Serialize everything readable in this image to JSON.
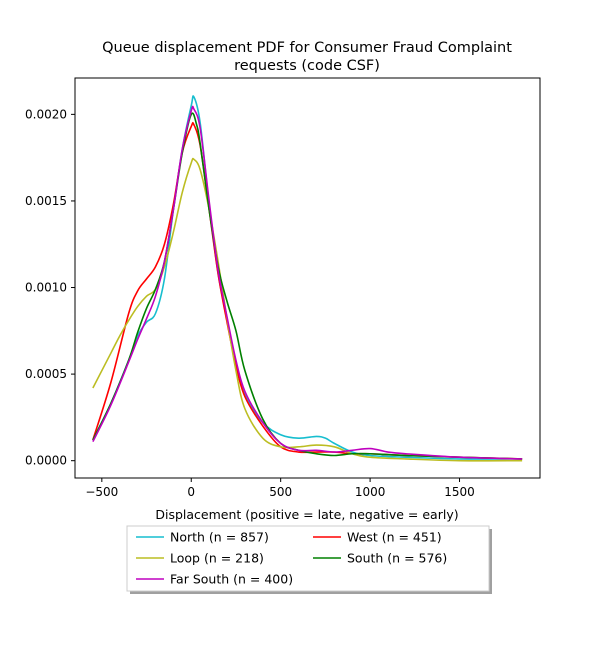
{
  "chart_data": {
    "type": "line",
    "title": "Queue displacement PDF for Consumer Fraud Complaint requests (code CSF)",
    "title_lines": [
      "Queue displacement PDF for Consumer Fraud Complaint",
      "requests (code CSF)"
    ],
    "xlabel": "Displacement (positive = late, negative = early)",
    "ylabel": "",
    "xlim": [
      -650,
      1950
    ],
    "ylim": [
      -0.0001,
      0.00221
    ],
    "xticks": [
      -500,
      0,
      500,
      1000,
      1500
    ],
    "yticks": [
      0.0,
      0.0005,
      0.001,
      0.0015,
      0.002
    ],
    "xtick_labels": [
      "−500",
      "0",
      "500",
      "1000",
      "1500"
    ],
    "ytick_labels": [
      "0.0000",
      "0.0005",
      "0.0010",
      "0.0015",
      "0.0020"
    ],
    "grid": false,
    "legend_position": "below",
    "series": [
      {
        "name": "North (n = 857)",
        "color": "#17becf",
        "points": [
          [
            -550,
            0.00012
          ],
          [
            -450,
            0.00033
          ],
          [
            -350,
            0.00058
          ],
          [
            -300,
            0.00072
          ],
          [
            -250,
            0.0008
          ],
          [
            -200,
            0.00085
          ],
          [
            -150,
            0.00105
          ],
          [
            -100,
            0.00145
          ],
          [
            -50,
            0.0018
          ],
          [
            0,
            0.00205
          ],
          [
            15,
            0.0021
          ],
          [
            50,
            0.00195
          ],
          [
            100,
            0.00148
          ],
          [
            150,
            0.00108
          ],
          [
            200,
            0.00082
          ],
          [
            250,
            0.00055
          ],
          [
            300,
            0.00038
          ],
          [
            400,
            0.00022
          ],
          [
            500,
            0.00015
          ],
          [
            600,
            0.00013
          ],
          [
            700,
            0.00014
          ],
          [
            750,
            0.00013
          ],
          [
            800,
            0.0001
          ],
          [
            900,
            5e-05
          ],
          [
            1000,
            3e-05
          ],
          [
            1200,
            2e-05
          ],
          [
            1500,
            1e-05
          ],
          [
            1850,
            1e-05
          ]
        ]
      },
      {
        "name": "West (n = 451)",
        "color": "#ff0000",
        "points": [
          [
            -550,
            0.00012
          ],
          [
            -450,
            0.00045
          ],
          [
            -350,
            0.00085
          ],
          [
            -300,
            0.00098
          ],
          [
            -250,
            0.00105
          ],
          [
            -200,
            0.00112
          ],
          [
            -150,
            0.00125
          ],
          [
            -100,
            0.00148
          ],
          [
            -50,
            0.00178
          ],
          [
            0,
            0.00193
          ],
          [
            15,
            0.00194
          ],
          [
            50,
            0.00182
          ],
          [
            100,
            0.00145
          ],
          [
            150,
            0.00108
          ],
          [
            200,
            0.0008
          ],
          [
            250,
            0.00055
          ],
          [
            300,
            0.00037
          ],
          [
            400,
            0.0002
          ],
          [
            500,
            8e-05
          ],
          [
            600,
            5e-05
          ],
          [
            700,
            5e-05
          ],
          [
            800,
            5e-05
          ],
          [
            900,
            4e-05
          ],
          [
            1000,
            4e-05
          ],
          [
            1200,
            3e-05
          ],
          [
            1500,
            2e-05
          ],
          [
            1850,
            1e-05
          ]
        ]
      },
      {
        "name": "Loop (n = 218)",
        "color": "#bcbd22",
        "points": [
          [
            -550,
            0.00042
          ],
          [
            -450,
            0.00062
          ],
          [
            -400,
            0.00072
          ],
          [
            -350,
            0.00081
          ],
          [
            -300,
            0.00089
          ],
          [
            -250,
            0.00095
          ],
          [
            -200,
            0.00099
          ],
          [
            -150,
            0.00112
          ],
          [
            -100,
            0.00132
          ],
          [
            -50,
            0.00155
          ],
          [
            0,
            0.00172
          ],
          [
            15,
            0.00174
          ],
          [
            50,
            0.00168
          ],
          [
            100,
            0.00145
          ],
          [
            150,
            0.00115
          ],
          [
            200,
            0.00082
          ],
          [
            250,
            0.00052
          ],
          [
            300,
            0.0003
          ],
          [
            400,
            0.00013
          ],
          [
            500,
            8e-05
          ],
          [
            600,
            8e-05
          ],
          [
            700,
            9e-05
          ],
          [
            800,
            8e-05
          ],
          [
            900,
            4e-05
          ],
          [
            1000,
            2e-05
          ],
          [
            1200,
            1e-05
          ],
          [
            1500,
            0.0
          ],
          [
            1850,
            0.0
          ]
        ]
      },
      {
        "name": "South (n = 576)",
        "color": "#008000",
        "points": [
          [
            -550,
            0.00012
          ],
          [
            -450,
            0.00033
          ],
          [
            -350,
            0.00058
          ],
          [
            -300,
            0.00074
          ],
          [
            -250,
            0.00088
          ],
          [
            -200,
            0.00099
          ],
          [
            -150,
            0.00115
          ],
          [
            -100,
            0.00145
          ],
          [
            -50,
            0.00178
          ],
          [
            0,
            0.002
          ],
          [
            30,
            0.00194
          ],
          [
            50,
            0.00183
          ],
          [
            100,
            0.00145
          ],
          [
            150,
            0.00112
          ],
          [
            200,
            0.00092
          ],
          [
            250,
            0.00075
          ],
          [
            300,
            0.00052
          ],
          [
            400,
            0.00024
          ],
          [
            500,
            0.0001
          ],
          [
            600,
            6e-05
          ],
          [
            700,
            4e-05
          ],
          [
            800,
            3e-05
          ],
          [
            900,
            4e-05
          ],
          [
            1000,
            4e-05
          ],
          [
            1200,
            3e-05
          ],
          [
            1500,
            2e-05
          ],
          [
            1850,
            1e-05
          ]
        ]
      },
      {
        "name": "Far South (n = 400)",
        "color": "#bf00bf",
        "points": [
          [
            -550,
            0.00011
          ],
          [
            -450,
            0.00032
          ],
          [
            -350,
            0.00057
          ],
          [
            -300,
            0.0007
          ],
          [
            -250,
            0.00082
          ],
          [
            -200,
            0.00095
          ],
          [
            -150,
            0.00115
          ],
          [
            -100,
            0.00145
          ],
          [
            -50,
            0.0018
          ],
          [
            0,
            0.00202
          ],
          [
            15,
            0.00203
          ],
          [
            50,
            0.00192
          ],
          [
            100,
            0.0015
          ],
          [
            150,
            0.0011
          ],
          [
            200,
            0.00083
          ],
          [
            250,
            0.00058
          ],
          [
            300,
            0.0004
          ],
          [
            400,
            0.00022
          ],
          [
            500,
            0.0001
          ],
          [
            600,
            6e-05
          ],
          [
            700,
            6e-05
          ],
          [
            800,
            5e-05
          ],
          [
            900,
            6e-05
          ],
          [
            1000,
            7e-05
          ],
          [
            1100,
            5e-05
          ],
          [
            1200,
            4e-05
          ],
          [
            1500,
            2e-05
          ],
          [
            1850,
            1e-05
          ]
        ]
      }
    ]
  }
}
